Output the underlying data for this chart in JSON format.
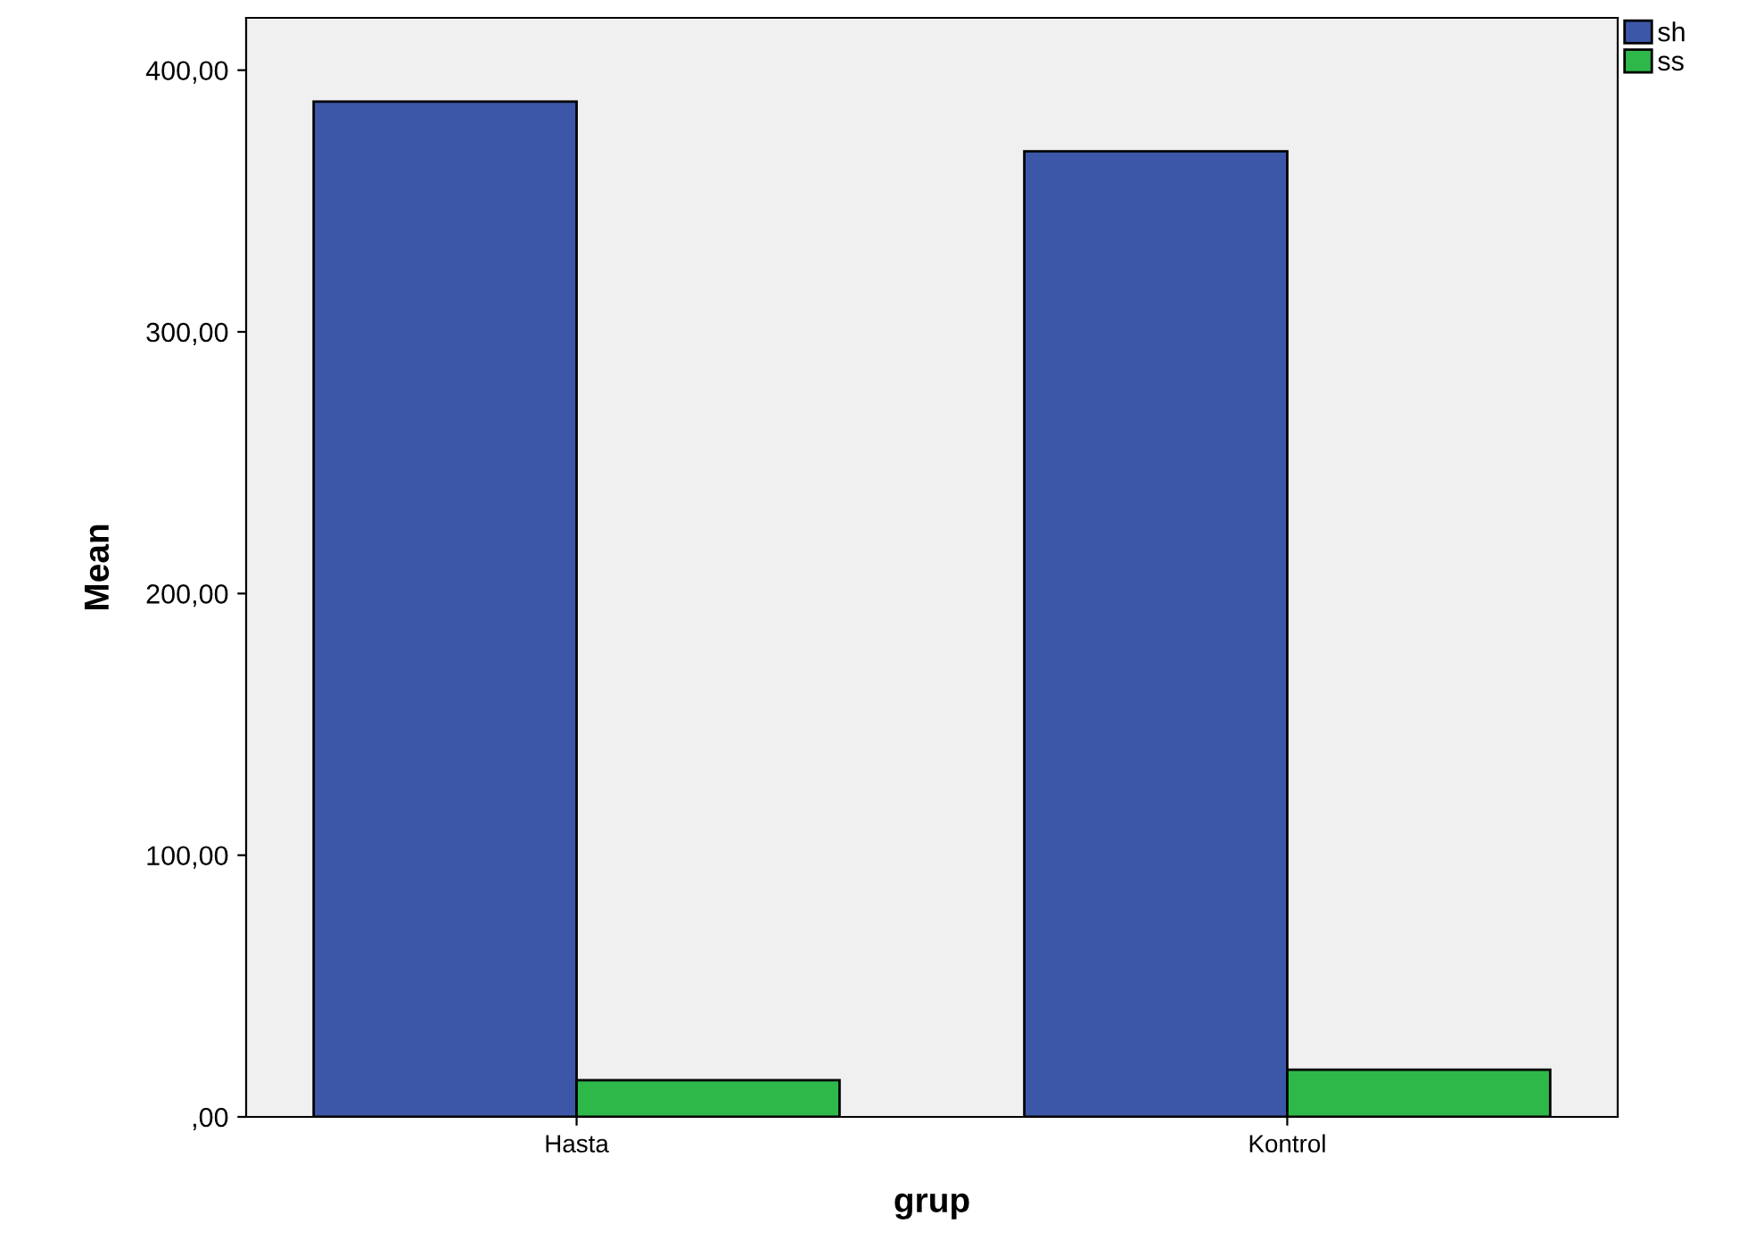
{
  "chart_data": {
    "type": "bar",
    "xlabel": "grup",
    "ylabel": "Mean",
    "categories": [
      "Hasta",
      "Kontrol"
    ],
    "series": [
      {
        "name": "sh",
        "color": "#3d57a8",
        "values": [
          388,
          369
        ]
      },
      {
        "name": "ss",
        "color": "#2eb84a",
        "values": [
          14,
          18
        ]
      }
    ],
    "ylim": [
      0,
      420
    ],
    "yticks": [
      {
        "value": 0,
        "label": ",00"
      },
      {
        "value": 100,
        "label": "100,00"
      },
      {
        "value": 200,
        "label": "200,00"
      },
      {
        "value": 300,
        "label": "300,00"
      },
      {
        "value": 400,
        "label": "400,00"
      }
    ],
    "grid": false,
    "legend": "top right"
  }
}
